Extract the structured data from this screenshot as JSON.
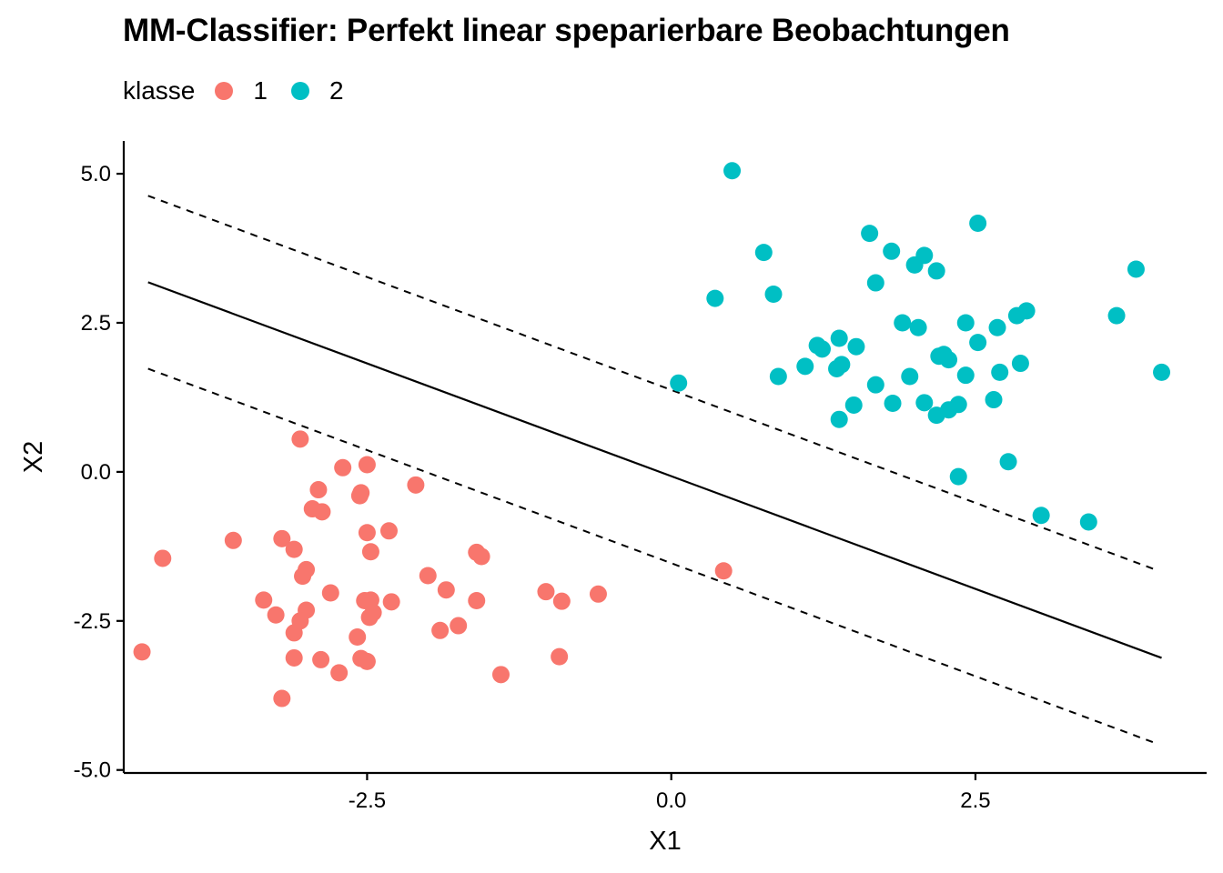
{
  "chart_data": {
    "type": "scatter",
    "title": "MM-Classifier: Perfekt linear speparierbare Beobachtungen",
    "xlabel": "X1",
    "ylabel": "X2",
    "xlim": [
      -4.5,
      4.4
    ],
    "ylim": [
      -5.05,
      5.55
    ],
    "x_ticks": [
      {
        "value": -2.5,
        "label": "-2.5"
      },
      {
        "value": 0.0,
        "label": "0.0"
      },
      {
        "value": 2.5,
        "label": "2.5"
      }
    ],
    "y_ticks": [
      {
        "value": 5.0,
        "label": "5.0"
      },
      {
        "value": 2.5,
        "label": "2.5"
      },
      {
        "value": 0.0,
        "label": "0.0"
      },
      {
        "value": -2.5,
        "label": "-2.5"
      },
      {
        "value": -5.0,
        "label": "-5.0"
      }
    ],
    "grid": false,
    "legend": {
      "title": "klasse",
      "position": "top-left"
    },
    "series": [
      {
        "name": "1",
        "color": "#F8766D",
        "points": [
          [
            -3.05,
            0.55
          ],
          [
            -2.7,
            0.07
          ],
          [
            -2.5,
            0.12
          ],
          [
            -2.1,
            -0.22
          ],
          [
            -2.55,
            -0.35
          ],
          [
            -2.56,
            -0.4
          ],
          [
            -2.9,
            -0.3
          ],
          [
            -2.95,
            -0.62
          ],
          [
            -2.87,
            -0.67
          ],
          [
            -2.32,
            -0.99
          ],
          [
            -2.5,
            -1.02
          ],
          [
            -3.6,
            -1.15
          ],
          [
            -3.2,
            -1.12
          ],
          [
            -3.1,
            -1.3
          ],
          [
            -2.47,
            -1.34
          ],
          [
            -4.18,
            -1.45
          ],
          [
            -1.6,
            -1.35
          ],
          [
            -1.56,
            -1.42
          ],
          [
            0.43,
            -1.66
          ],
          [
            -3.0,
            -1.64
          ],
          [
            -3.03,
            -1.75
          ],
          [
            -2.0,
            -1.74
          ],
          [
            -2.8,
            -2.03
          ],
          [
            -1.85,
            -1.98
          ],
          [
            -1.03,
            -2.01
          ],
          [
            -0.6,
            -2.05
          ],
          [
            -3.35,
            -2.15
          ],
          [
            -2.52,
            -2.16
          ],
          [
            -2.47,
            -2.15
          ],
          [
            -2.3,
            -2.18
          ],
          [
            -1.6,
            -2.16
          ],
          [
            -0.9,
            -2.17
          ],
          [
            -3.0,
            -2.32
          ],
          [
            -2.45,
            -2.36
          ],
          [
            -3.25,
            -2.4
          ],
          [
            -2.48,
            -2.44
          ],
          [
            -3.05,
            -2.5
          ],
          [
            -1.75,
            -2.58
          ],
          [
            -1.9,
            -2.66
          ],
          [
            -3.1,
            -2.7
          ],
          [
            -2.58,
            -2.77
          ],
          [
            -4.35,
            -3.02
          ],
          [
            -3.1,
            -3.12
          ],
          [
            -2.88,
            -3.15
          ],
          [
            -2.55,
            -3.13
          ],
          [
            -2.5,
            -3.18
          ],
          [
            -0.92,
            -3.1
          ],
          [
            -2.73,
            -3.37
          ],
          [
            -1.4,
            -3.4
          ],
          [
            -3.2,
            -3.8
          ]
        ]
      },
      {
        "name": "2",
        "color": "#00BFC4",
        "points": [
          [
            0.5,
            5.05
          ],
          [
            2.52,
            4.17
          ],
          [
            1.63,
            4.0
          ],
          [
            1.81,
            3.7
          ],
          [
            2.08,
            3.63
          ],
          [
            0.76,
            3.68
          ],
          [
            2.0,
            3.47
          ],
          [
            2.18,
            3.37
          ],
          [
            3.82,
            3.4
          ],
          [
            1.68,
            3.17
          ],
          [
            0.84,
            2.98
          ],
          [
            0.36,
            2.91
          ],
          [
            2.92,
            2.7
          ],
          [
            2.84,
            2.62
          ],
          [
            3.66,
            2.62
          ],
          [
            1.9,
            2.5
          ],
          [
            2.03,
            2.42
          ],
          [
            2.42,
            2.5
          ],
          [
            2.68,
            2.42
          ],
          [
            1.38,
            2.24
          ],
          [
            1.2,
            2.12
          ],
          [
            1.24,
            2.06
          ],
          [
            1.52,
            2.1
          ],
          [
            2.52,
            2.17
          ],
          [
            2.2,
            1.94
          ],
          [
            2.28,
            1.88
          ],
          [
            2.24,
            1.97
          ],
          [
            1.1,
            1.77
          ],
          [
            1.36,
            1.73
          ],
          [
            1.4,
            1.8
          ],
          [
            2.87,
            1.82
          ],
          [
            0.88,
            1.6
          ],
          [
            1.96,
            1.6
          ],
          [
            2.42,
            1.62
          ],
          [
            2.7,
            1.67
          ],
          [
            4.03,
            1.67
          ],
          [
            0.06,
            1.49
          ],
          [
            1.68,
            1.46
          ],
          [
            1.5,
            1.12
          ],
          [
            1.82,
            1.15
          ],
          [
            2.08,
            1.16
          ],
          [
            2.36,
            1.13
          ],
          [
            2.65,
            1.21
          ],
          [
            2.28,
            1.04
          ],
          [
            2.18,
            0.95
          ],
          [
            1.38,
            0.88
          ],
          [
            2.77,
            0.17
          ],
          [
            2.36,
            -0.08
          ],
          [
            3.04,
            -0.73
          ],
          [
            3.43,
            -0.84
          ]
        ]
      }
    ],
    "hyperplane": [
      [
        -4.3,
        3.18
      ],
      [
        4.03,
        -3.12
      ]
    ],
    "margins": [
      [
        [
          -4.3,
          4.63
        ],
        [
          3.98,
          -1.64
        ]
      ],
      [
        [
          -4.3,
          1.73
        ],
        [
          3.98,
          -4.55
        ]
      ]
    ]
  }
}
